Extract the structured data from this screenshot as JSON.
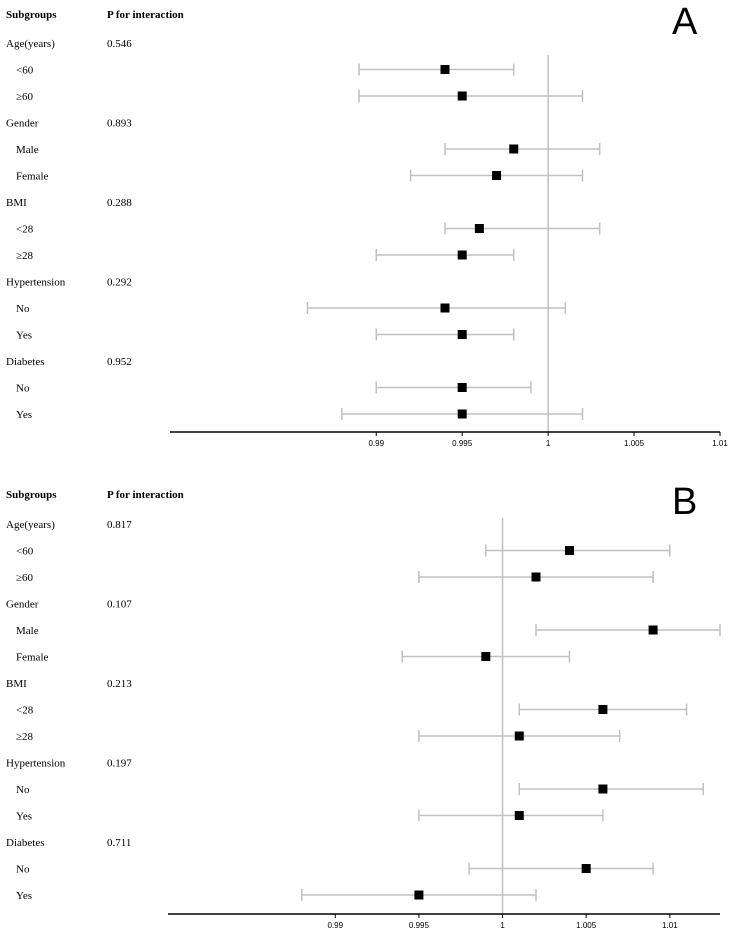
{
  "chart_data": [
    {
      "type": "forest",
      "panel_label": "A",
      "header_subgroups": "Subgroups",
      "header_p": "P for interaction",
      "xlim": [
        0.978,
        1.01
      ],
      "xticks": [
        "0.99",
        "0.995",
        "1",
        "1.005",
        "1.01"
      ],
      "ref_line": 1,
      "rows": [
        {
          "label": "Age(years)",
          "p": "0.546",
          "group": true
        },
        {
          "label": "<60",
          "est": 0.994,
          "lo": 0.989,
          "hi": 0.998
        },
        {
          "label": "≥60",
          "est": 0.995,
          "lo": 0.989,
          "hi": 1.002
        },
        {
          "label": "Gender",
          "p": "0.893",
          "group": true
        },
        {
          "label": "Male",
          "est": 0.998,
          "lo": 0.994,
          "hi": 1.003
        },
        {
          "label": "Female",
          "est": 0.997,
          "lo": 0.992,
          "hi": 1.002
        },
        {
          "label": "BMI",
          "p": "0.288",
          "group": true
        },
        {
          "label": "<28",
          "est": 0.996,
          "lo": 0.994,
          "hi": 1.003
        },
        {
          "label": "≥28",
          "est": 0.995,
          "lo": 0.99,
          "hi": 0.998
        },
        {
          "label": "Hypertension",
          "p": "0.292",
          "group": true
        },
        {
          "label": "No",
          "est": 0.994,
          "lo": 0.986,
          "hi": 1.001
        },
        {
          "label": "Yes",
          "est": 0.995,
          "lo": 0.99,
          "hi": 0.998
        },
        {
          "label": "Diabetes",
          "p": "0.952",
          "group": true
        },
        {
          "label": "No",
          "est": 0.995,
          "lo": 0.99,
          "hi": 0.999
        },
        {
          "label": "Yes",
          "est": 0.995,
          "lo": 0.988,
          "hi": 1.002
        }
      ]
    },
    {
      "type": "forest",
      "panel_label": "B",
      "header_subgroups": "Subgroups",
      "header_p": "P for interaction",
      "xlim": [
        0.98,
        1.013
      ],
      "xticks": [
        "0.99",
        "0.995",
        "1",
        "1.005",
        "1.01"
      ],
      "ref_line": 1,
      "rows": [
        {
          "label": "Age(years)",
          "p": "0.817",
          "group": true
        },
        {
          "label": "<60",
          "est": 1.004,
          "lo": 0.999,
          "hi": 1.01
        },
        {
          "label": "≥60",
          "est": 1.002,
          "lo": 0.995,
          "hi": 1.009
        },
        {
          "label": "Gender",
          "p": "0.107",
          "group": true
        },
        {
          "label": "Male",
          "est": 1.009,
          "lo": 1.002,
          "hi": 1.013
        },
        {
          "label": "Female",
          "est": 0.999,
          "lo": 0.994,
          "hi": 1.004
        },
        {
          "label": "BMI",
          "p": "0.213",
          "group": true
        },
        {
          "label": "<28",
          "est": 1.006,
          "lo": 1.001,
          "hi": 1.011
        },
        {
          "label": "≥28",
          "est": 1.001,
          "lo": 0.995,
          "hi": 1.007
        },
        {
          "label": "Hypertension",
          "p": "0.197",
          "group": true
        },
        {
          "label": "No",
          "est": 1.006,
          "lo": 1.001,
          "hi": 1.012
        },
        {
          "label": "Yes",
          "est": 1.001,
          "lo": 0.995,
          "hi": 1.006
        },
        {
          "label": "Diabetes",
          "p": "0.711",
          "group": true
        },
        {
          "label": "No",
          "est": 1.005,
          "lo": 0.998,
          "hi": 1.009
        },
        {
          "label": "Yes",
          "est": 0.995,
          "lo": 0.988,
          "hi": 1.002
        }
      ]
    }
  ],
  "colors": {
    "ci_line": "#c0c0c0",
    "ref_line": "#c0c0c0",
    "marker": "#000000",
    "axis": "#000000"
  }
}
